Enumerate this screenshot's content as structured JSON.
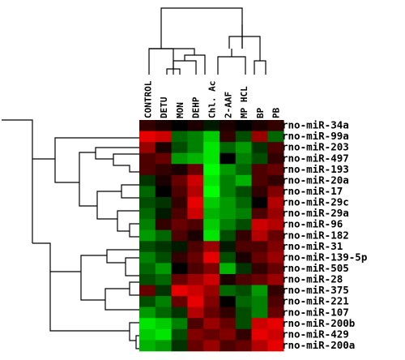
{
  "heatmap": {
    "columns": [
      "CONTROL",
      "DETU",
      "MON",
      "DEHP",
      "Chl. Ac",
      "2-AAF",
      "MP HCL",
      "BP",
      "PB"
    ],
    "rows": [
      "rno-miR-34a",
      "rno-miR-99a",
      "rno-miR-203",
      "rno-miR-497",
      "rno-miR-193",
      "rno-miR-20a",
      "rno-miR-17",
      "rno-miR-29c",
      "rno-miR-29a",
      "rno-miR-96",
      "rno-miR-182",
      "rno-miR-31",
      "rno-miR-139-5p",
      "rno-miR-505",
      "rno-miR-28",
      "rno-miR-375",
      "rno-miR-221",
      "rno-miR-107",
      "rno-miR-200b",
      "rno-miR-429",
      "rno-miR-200a"
    ],
    "values": [
      [
        0.2,
        0.1,
        0.0,
        0.1,
        -0.1,
        0.1,
        0.0,
        0.1,
        0.2
      ],
      [
        0.9,
        0.8,
        -0.4,
        -0.5,
        -0.8,
        0.2,
        -0.3,
        0.6,
        -0.4
      ],
      [
        0.6,
        0.1,
        -0.3,
        -0.5,
        -0.9,
        -0.4,
        -0.6,
        -0.2,
        0.3
      ],
      [
        0.3,
        0.4,
        -0.6,
        -0.7,
        -0.9,
        0.0,
        -0.5,
        -0.3,
        0.2
      ],
      [
        0.3,
        0.2,
        0.1,
        0.4,
        -1.0,
        -0.6,
        -0.4,
        0.3,
        0.4
      ],
      [
        -0.2,
        0.1,
        0.4,
        0.8,
        -0.9,
        -0.5,
        -0.7,
        0.3,
        0.2
      ],
      [
        -0.4,
        0.0,
        0.3,
        0.7,
        -1.0,
        -0.5,
        -0.3,
        0.2,
        0.5
      ],
      [
        -0.3,
        -0.2,
        0.2,
        0.9,
        -0.8,
        -0.6,
        -0.4,
        0.0,
        0.7
      ],
      [
        -0.4,
        -0.1,
        0.3,
        0.8,
        -0.7,
        -0.6,
        -0.5,
        0.3,
        0.6
      ],
      [
        -0.5,
        0.2,
        0.4,
        0.3,
        -0.8,
        -0.5,
        -0.3,
        0.8,
        0.7
      ],
      [
        -0.6,
        -0.4,
        0.3,
        0.1,
        -0.9,
        -0.3,
        0.2,
        0.7,
        0.4
      ],
      [
        -0.3,
        -0.2,
        -0.1,
        0.3,
        0.6,
        -0.1,
        0.3,
        0.3,
        0.5
      ],
      [
        -0.5,
        -0.3,
        0.2,
        0.4,
        0.9,
        -0.3,
        0.1,
        0.4,
        0.6
      ],
      [
        -0.4,
        -0.6,
        0.0,
        0.3,
        0.5,
        -0.7,
        -0.2,
        0.2,
        0.4
      ],
      [
        -0.3,
        -0.4,
        0.4,
        0.6,
        0.8,
        0.1,
        0.3,
        0.4,
        0.6
      ],
      [
        0.4,
        -0.2,
        0.9,
        0.8,
        0.6,
        -0.4,
        -0.3,
        -0.6,
        0.2
      ],
      [
        -0.3,
        -0.5,
        0.4,
        0.9,
        0.5,
        0.0,
        -0.4,
        -0.5,
        0.3
      ],
      [
        -0.6,
        -0.4,
        -0.2,
        0.7,
        0.4,
        0.2,
        -0.3,
        -0.5,
        0.4
      ],
      [
        -0.9,
        -0.8,
        -0.5,
        0.3,
        0.6,
        0.4,
        -0.3,
        0.8,
        0.9
      ],
      [
        -0.8,
        -0.9,
        -0.3,
        0.5,
        0.4,
        0.5,
        0.2,
        0.9,
        0.8
      ],
      [
        -0.7,
        -0.6,
        -0.2,
        0.4,
        0.6,
        0.3,
        0.4,
        0.7,
        0.9
      ]
    ],
    "colors": {
      "up": "#ff0000",
      "neutral": "#000000",
      "down": "#00ff00",
      "background": "#ffffff",
      "dendrogram": "#000000"
    }
  }
}
